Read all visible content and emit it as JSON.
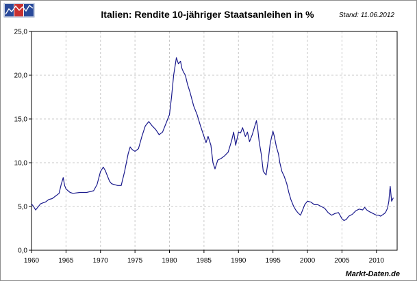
{
  "chart_data": {
    "type": "line",
    "title": "Italien: Rendite 10-jähriger Staatsanleihen in %",
    "stand": "Stand: 11.06.2012",
    "source": "Markt-Daten.de",
    "xlabel": "",
    "ylabel": "",
    "xlim": [
      1960,
      2013
    ],
    "ylim": [
      0,
      25
    ],
    "grid": true,
    "x_ticks": [
      "1960",
      "1965",
      "1970",
      "1975",
      "1980",
      "1985",
      "1990",
      "1995",
      "2000",
      "2005",
      "2010"
    ],
    "y_ticks": [
      "0,0",
      "5,0",
      "10,0",
      "15,0",
      "20,0",
      "25,0"
    ],
    "line_color": "#1a1a8c",
    "grid_color": "#c8c8c8",
    "series": [
      {
        "x": [
          1960,
          1960.3,
          1960.6,
          1961,
          1961.3,
          1961.6,
          1962,
          1962.5,
          1963,
          1963.5,
          1964,
          1964.3,
          1964.6,
          1964.8,
          1965,
          1965.3,
          1965.6,
          1966,
          1967,
          1968,
          1969,
          1969.5,
          1970,
          1970.4,
          1970.7,
          1971,
          1971.3,
          1971.6,
          1972,
          1972.5,
          1973,
          1973.5,
          1974,
          1974.3,
          1974.6,
          1975,
          1975.5,
          1976,
          1976.5,
          1977,
          1977.5,
          1978,
          1978.5,
          1979,
          1979.5,
          1980,
          1980.3,
          1980.6,
          1981,
          1981.3,
          1981.6,
          1981.8,
          1982,
          1982.3,
          1982.6,
          1983,
          1983.5,
          1984,
          1984.5,
          1985,
          1985.3,
          1985.6,
          1986,
          1986.3,
          1986.6,
          1987,
          1987.5,
          1988,
          1988.5,
          1989,
          1989.3,
          1989.6,
          1990,
          1990.3,
          1990.6,
          1991,
          1991.3,
          1991.6,
          1992,
          1992.3,
          1992.6,
          1992.8,
          1993,
          1993.3,
          1993.6,
          1994,
          1994.3,
          1994.6,
          1995,
          1995.2,
          1995.5,
          1995.8,
          1996,
          1996.3,
          1996.6,
          1997,
          1997.3,
          1997.6,
          1998,
          1998.3,
          1998.6,
          1999,
          1999.3,
          1999.6,
          2000,
          2000.5,
          2001,
          2001.5,
          2002,
          2002.5,
          2003,
          2003.5,
          2004,
          2004.5,
          2005,
          2005.3,
          2005.6,
          2006,
          2006.5,
          2007,
          2007.5,
          2008,
          2008.3,
          2008.6,
          2009,
          2009.5,
          2010,
          2010.3,
          2010.6,
          2011,
          2011.3,
          2011.6,
          2011.8,
          2011.9,
          2012,
          2012.2,
          2012.45
        ],
        "y": [
          5.3,
          5.0,
          4.6,
          5.0,
          5.3,
          5.4,
          5.5,
          5.8,
          5.9,
          6.2,
          6.5,
          7.5,
          8.3,
          7.4,
          7.0,
          6.8,
          6.6,
          6.5,
          6.6,
          6.6,
          6.8,
          7.5,
          9.0,
          9.5,
          9.1,
          8.5,
          7.9,
          7.6,
          7.5,
          7.4,
          7.4,
          9.0,
          11.0,
          11.8,
          11.5,
          11.3,
          11.6,
          13.0,
          14.2,
          14.7,
          14.2,
          13.8,
          13.2,
          13.5,
          14.5,
          15.5,
          17.5,
          20.0,
          22.0,
          21.3,
          21.6,
          20.8,
          20.4,
          20.0,
          19.0,
          18.0,
          16.5,
          15.5,
          14.2,
          13.0,
          12.3,
          13.0,
          12.0,
          10.0,
          9.3,
          10.3,
          10.5,
          10.8,
          11.2,
          12.5,
          13.5,
          12.0,
          13.5,
          13.4,
          14.0,
          13.0,
          13.5,
          12.4,
          13.2,
          14.0,
          14.8,
          13.8,
          12.4,
          11.0,
          9.0,
          8.6,
          10.2,
          12.2,
          13.6,
          13.0,
          11.8,
          11.0,
          10.0,
          9.0,
          8.5,
          7.6,
          6.6,
          5.8,
          5.0,
          4.6,
          4.3,
          4.0,
          4.6,
          5.2,
          5.6,
          5.5,
          5.2,
          5.2,
          5.0,
          4.8,
          4.3,
          4.0,
          4.2,
          4.3,
          3.6,
          3.4,
          3.5,
          3.9,
          4.1,
          4.5,
          4.7,
          4.6,
          4.9,
          4.6,
          4.4,
          4.2,
          4.0,
          4.0,
          3.9,
          4.1,
          4.3,
          4.8,
          5.6,
          6.6,
          7.3,
          5.6,
          6.0
        ]
      }
    ]
  }
}
